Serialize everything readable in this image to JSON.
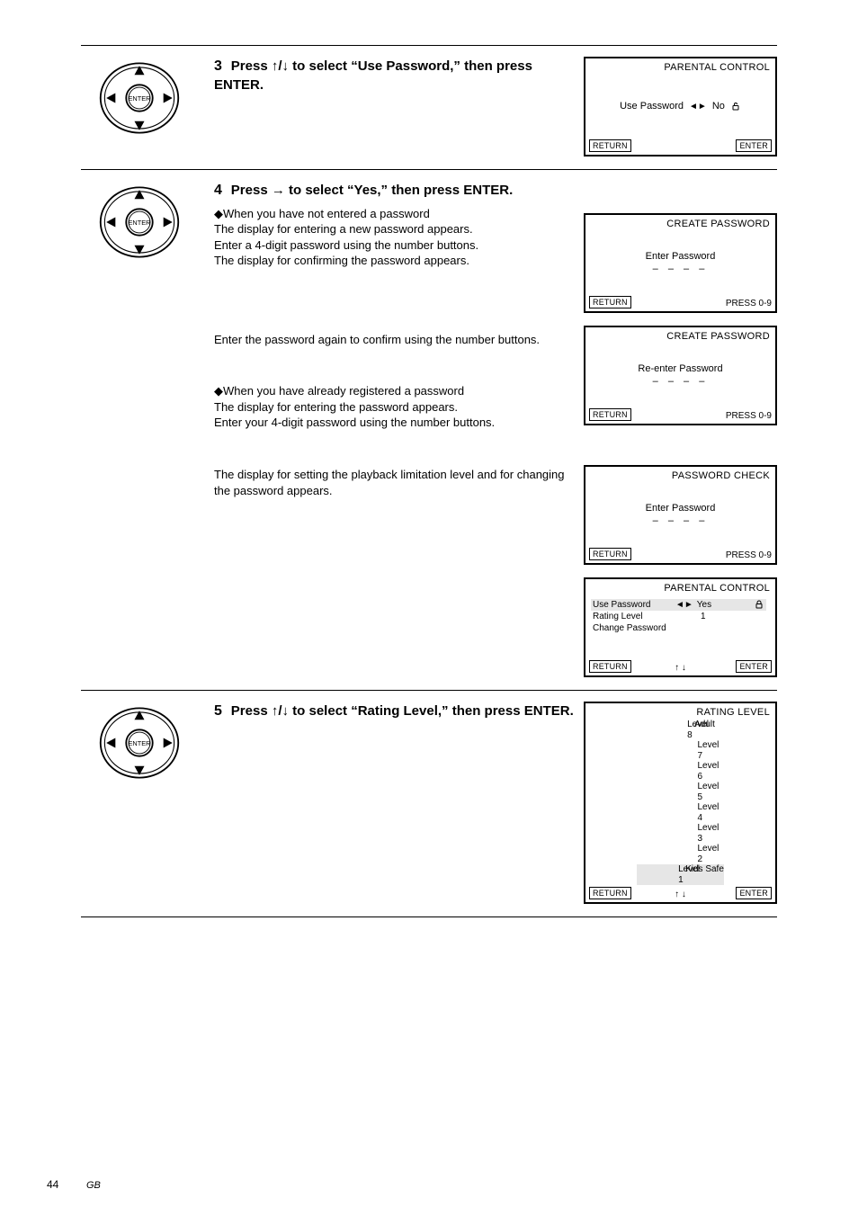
{
  "page_number": "44",
  "page_side_label": "GB",
  "steps": [
    {
      "num": "3",
      "direction_arrows": "↑/↓",
      "main": "Press ↑/↓ to select “Use Password,” then press ENTER.",
      "subs": []
    },
    {
      "num": "4",
      "direction_arrows": "→",
      "main": "Press → to select “Yes,” then press ENTER.",
      "subs": [
        "◆When you have not entered a password\nThe display for entering a new password appears.\nEnter a 4-digit password using the number buttons.\nThe display for confirming the password appears.",
        "Enter the password again to confirm using the number buttons.",
        "◆When you have already registered a password\nThe display for entering the password appears.\nEnter your 4-digit password using the number buttons.",
        "The display for setting the playback limitation level and for changing the password appears."
      ]
    },
    {
      "num": "5",
      "direction_arrows": "↑/↓",
      "main": "Press ↑/↓ to select “Rating Level,” then press ENTER.",
      "subs": []
    }
  ],
  "osd": {
    "parental1": {
      "title": "PARENTAL CONTROL",
      "line": "Use Password",
      "arrows": "◄►",
      "value": "No",
      "footer_left": "RETURN",
      "footer_right": "ENTER"
    },
    "create1": {
      "title": "CREATE PASSWORD",
      "line": "Enter Password",
      "dashes": "– – – –",
      "footer_left": "RETURN",
      "footer_right": "PRESS 0-9"
    },
    "create2": {
      "title": "CREATE PASSWORD",
      "line": "Re-enter Password",
      "dashes": "– – – –",
      "footer_left": "RETURN",
      "footer_right": "PRESS 0-9"
    },
    "check": {
      "title": "PASSWORD CHECK",
      "line": "Enter Password",
      "dashes": "– – – –",
      "footer_left": "RETURN",
      "footer_right": "PRESS 0-9"
    },
    "parental2": {
      "title": "PARENTAL CONTROL",
      "rows": [
        {
          "lbl": "Use Password",
          "arrows": "◄►",
          "val": "Yes",
          "hl": true,
          "lock": true
        },
        {
          "lbl": "Rating Level",
          "arrows": "",
          "val": "1",
          "hl": false,
          "lock": false
        },
        {
          "lbl": "Change Password",
          "arrows": "",
          "val": "",
          "hl": false,
          "lock": false
        }
      ],
      "footer_left": "RETURN",
      "footer_center": "↑ ↓",
      "footer_right": "ENTER"
    },
    "rating": {
      "title": "RATING LEVEL",
      "levels": [
        {
          "lv": "Level 8",
          "note": "Adult",
          "hl": false
        },
        {
          "lv": "Level 7",
          "note": "",
          "hl": false
        },
        {
          "lv": "Level 6",
          "note": "",
          "hl": false
        },
        {
          "lv": "Level 5",
          "note": "",
          "hl": false
        },
        {
          "lv": "Level 4",
          "note": "",
          "hl": false
        },
        {
          "lv": "Level 3",
          "note": "",
          "hl": false
        },
        {
          "lv": "Level 2",
          "note": "",
          "hl": false
        },
        {
          "lv": "Level 1",
          "note": "Kids Safe",
          "hl": true
        }
      ],
      "footer_left": "RETURN",
      "footer_center": "↑ ↓",
      "footer_right": "ENTER"
    }
  }
}
